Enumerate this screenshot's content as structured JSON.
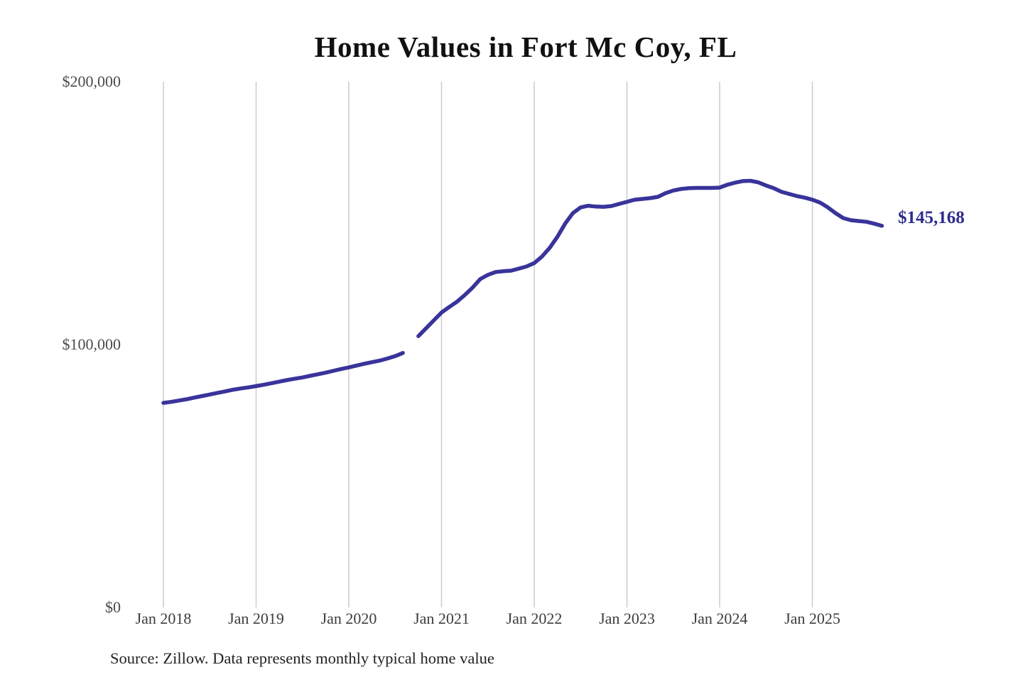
{
  "header": {
    "title": "Home Values in Fort Mc Coy, FL"
  },
  "footer": {
    "source_note": "Source: Zillow. Data represents monthly typical home value"
  },
  "colors": {
    "line": "#39349a",
    "end_label": "#2f2b8d",
    "gridline": "#cccccc",
    "x_axis_text": "#3d3d3d",
    "y_axis_text": "#4a4a4a",
    "title_text": "#111111",
    "source_text": "#222222",
    "background": "#ffffff"
  },
  "chart_data": {
    "type": "line",
    "title": "Home Values in Fort Mc Coy, FL",
    "xlabel": "",
    "ylabel": "",
    "ylim": [
      0,
      200000
    ],
    "grid": "vertical-only",
    "legend": "none",
    "y_ticks": [
      {
        "value": 0,
        "label": "$0"
      },
      {
        "value": 100000,
        "label": "$100,000"
      },
      {
        "value": 200000,
        "label": "$200,000"
      }
    ],
    "x_ticks": [
      {
        "month_index": 0,
        "label": "Jan 2018"
      },
      {
        "month_index": 12,
        "label": "Jan 2019"
      },
      {
        "month_index": 24,
        "label": "Jan 2020"
      },
      {
        "month_index": 36,
        "label": "Jan 2021"
      },
      {
        "month_index": 48,
        "label": "Jan 2022"
      },
      {
        "month_index": 60,
        "label": "Jan 2023"
      },
      {
        "month_index": 72,
        "label": "Jan 2024"
      },
      {
        "month_index": 84,
        "label": "Jan 2025"
      }
    ],
    "final_value": 145168,
    "final_value_label": "$145,168",
    "data_gap_month": "2020-09",
    "series": [
      {
        "name": "Monthly typical home value",
        "x": [
          "2018-01",
          "2018-02",
          "2018-03",
          "2018-04",
          "2018-05",
          "2018-06",
          "2018-07",
          "2018-08",
          "2018-09",
          "2018-10",
          "2018-11",
          "2018-12",
          "2019-01",
          "2019-02",
          "2019-03",
          "2019-04",
          "2019-05",
          "2019-06",
          "2019-07",
          "2019-08",
          "2019-09",
          "2019-10",
          "2019-11",
          "2019-12",
          "2020-01",
          "2020-02",
          "2020-03",
          "2020-04",
          "2020-05",
          "2020-06",
          "2020-07",
          "2020-08",
          "2020-09",
          "2020-10",
          "2020-11",
          "2020-12",
          "2021-01",
          "2021-02",
          "2021-03",
          "2021-04",
          "2021-05",
          "2021-06",
          "2021-07",
          "2021-08",
          "2021-09",
          "2021-10",
          "2021-11",
          "2021-12",
          "2022-01",
          "2022-02",
          "2022-03",
          "2022-04",
          "2022-05",
          "2022-06",
          "2022-07",
          "2022-08",
          "2022-09",
          "2022-10",
          "2022-11",
          "2022-12",
          "2023-01",
          "2023-02",
          "2023-03",
          "2023-04",
          "2023-05",
          "2023-06",
          "2023-07",
          "2023-08",
          "2023-09",
          "2023-10",
          "2023-11",
          "2023-12",
          "2024-01",
          "2024-02",
          "2024-03",
          "2024-04",
          "2024-05",
          "2024-06",
          "2024-07",
          "2024-08",
          "2024-09",
          "2024-10",
          "2024-11",
          "2024-12",
          "2025-01",
          "2025-02",
          "2025-03",
          "2025-04",
          "2025-05",
          "2025-06",
          "2025-07",
          "2025-08",
          "2025-09",
          "2025-10"
        ],
        "values": [
          77800,
          78200,
          78700,
          79200,
          79800,
          80400,
          81000,
          81600,
          82200,
          82800,
          83300,
          83700,
          84200,
          84700,
          85300,
          85900,
          86500,
          87000,
          87500,
          88100,
          88700,
          89300,
          90000,
          90700,
          91300,
          92000,
          92700,
          93300,
          93900,
          94700,
          95600,
          96800,
          null,
          103200,
          106200,
          109200,
          112200,
          114300,
          116300,
          118800,
          121600,
          124900,
          126500,
          127600,
          127900,
          128100,
          128900,
          129700,
          131000,
          133500,
          136800,
          141000,
          146000,
          150000,
          152200,
          152800,
          152500,
          152400,
          152700,
          153500,
          154300,
          155100,
          155400,
          155700,
          156200,
          157600,
          158600,
          159200,
          159500,
          159600,
          159600,
          159600,
          159700,
          160800,
          161600,
          162200,
          162300,
          161700,
          160500,
          159500,
          158100,
          157300,
          156500,
          155900,
          155100,
          154000,
          152200,
          150000,
          148100,
          147300,
          147000,
          146700,
          146000,
          145168
        ]
      }
    ]
  }
}
